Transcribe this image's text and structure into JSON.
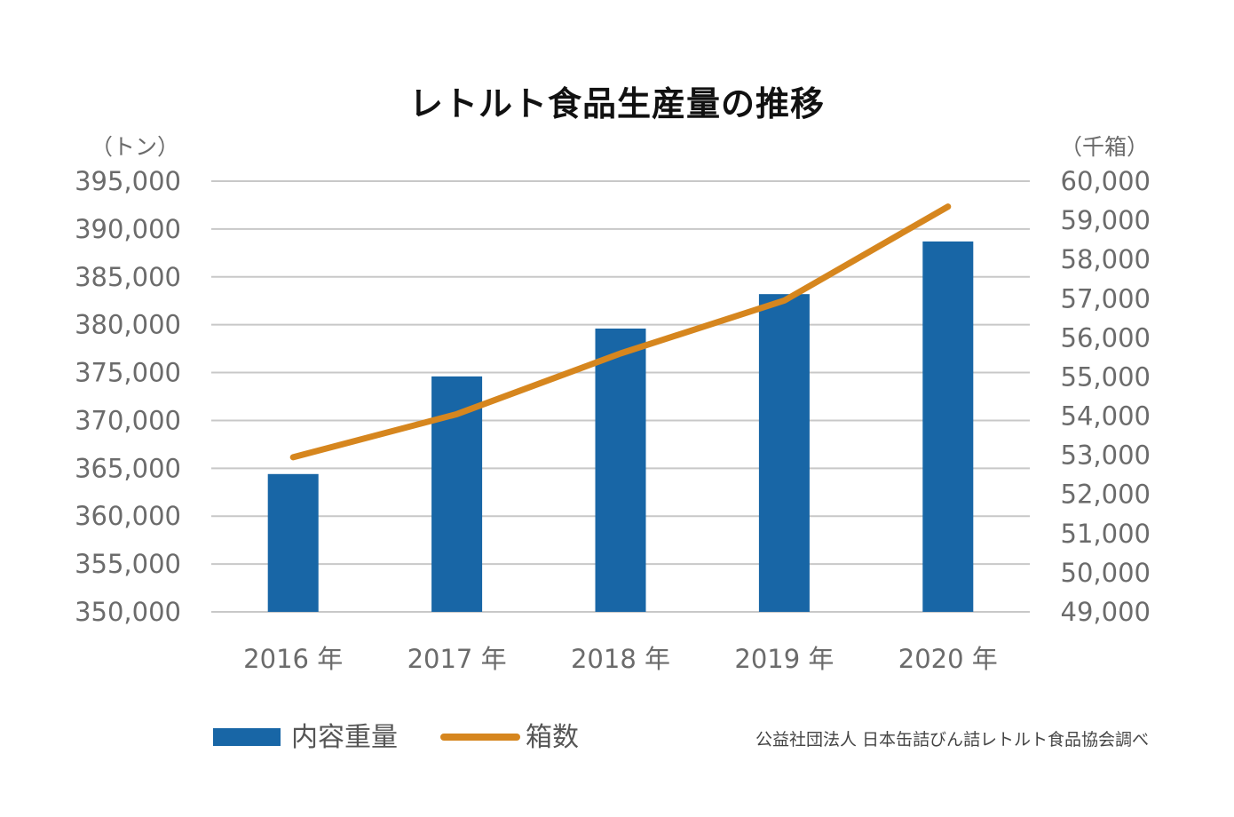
{
  "chart_data": {
    "type": "bar+line",
    "title": "レトルト食品生産量の推移",
    "categories": [
      "2016 年",
      "2017 年",
      "2018 年",
      "2019 年",
      "2020 年"
    ],
    "series": [
      {
        "name": "内容重量",
        "type": "bar",
        "axis": "left",
        "color": "#1866a6",
        "values": [
          364400,
          374600,
          379600,
          383200,
          388700
        ]
      },
      {
        "name": "箱数",
        "type": "line",
        "axis": "right",
        "color": "#d6861e",
        "values": [
          52950,
          54050,
          55600,
          56950,
          59350
        ]
      }
    ],
    "y_left": {
      "unit": "（トン）",
      "min": 350000,
      "max": 395000,
      "ticks": [
        "395,000",
        "390,000",
        "385,000",
        "380,000",
        "375,000",
        "370,000",
        "365,000",
        "360,000",
        "355,000",
        "350,000"
      ]
    },
    "y_right": {
      "unit": "（千箱）",
      "min": 49000,
      "max": 60000,
      "ticks": [
        "60,000",
        "59,000",
        "58,000",
        "57,000",
        "56,000",
        "55,000",
        "54,000",
        "53,000",
        "52,000",
        "51,000",
        "50,000",
        "49,000"
      ]
    },
    "legend": [
      "内容重量",
      "箱数"
    ],
    "legend_position": "bottom-left",
    "grid": true
  },
  "source": "公益社団法人 日本缶詰びん詰レトルト食品協会調べ"
}
